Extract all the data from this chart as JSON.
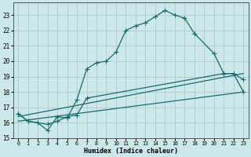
{
  "xlabel": "Humidex (Indice chaleur)",
  "bg_color": "#cce8ea",
  "grid_color": "#b0d0d2",
  "line_color": "#1a6b6b",
  "xlim": [
    -0.5,
    23.5
  ],
  "ylim": [
    15,
    23.8
  ],
  "yticks": [
    15,
    16,
    17,
    18,
    19,
    20,
    21,
    22,
    23
  ],
  "xticks": [
    0,
    1,
    2,
    3,
    4,
    5,
    6,
    7,
    8,
    9,
    10,
    11,
    12,
    13,
    14,
    15,
    16,
    17,
    18,
    19,
    20,
    21,
    22,
    23
  ],
  "line1_x": [
    0,
    1,
    2,
    3,
    4,
    5,
    6,
    7,
    8,
    9,
    10,
    11,
    12,
    13,
    14,
    15,
    16,
    17,
    18,
    20,
    21,
    22,
    23
  ],
  "line1_y": [
    16.6,
    16.1,
    16.0,
    15.5,
    16.4,
    16.3,
    17.5,
    19.5,
    19.9,
    20.0,
    20.6,
    22.0,
    22.3,
    22.5,
    22.9,
    23.3,
    23.0,
    22.8,
    21.8,
    20.5,
    19.2,
    19.2,
    18.8
  ],
  "line2_x": [
    0,
    1,
    2,
    3,
    4,
    5,
    6,
    7,
    21,
    22,
    23
  ],
  "line2_y": [
    16.6,
    16.1,
    16.0,
    15.9,
    16.1,
    16.4,
    16.5,
    17.6,
    19.2,
    19.2,
    18.0
  ],
  "line3_x": [
    0,
    23
  ],
  "line3_y": [
    16.4,
    19.2
  ],
  "line4_x": [
    0,
    23
  ],
  "line4_y": [
    16.1,
    18.0
  ]
}
